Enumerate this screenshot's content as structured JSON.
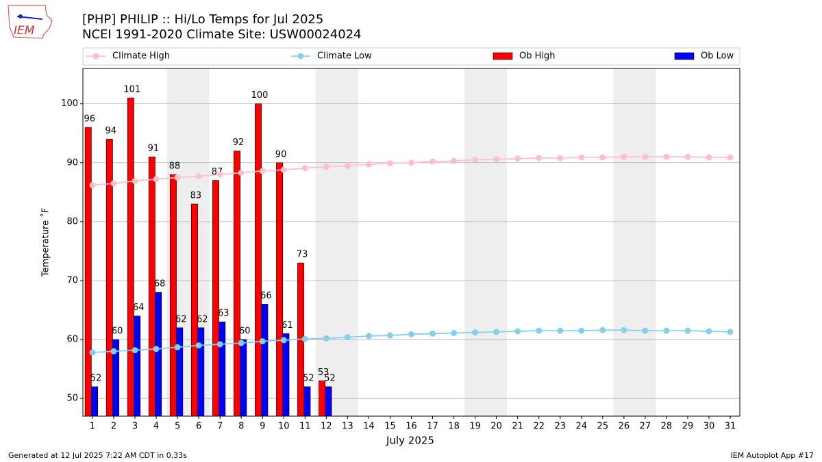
{
  "logo_text": "IEM",
  "chart_data": {
    "type": "bar_line",
    "title": "[PHP] PHILIP :: Hi/Lo Temps for Jul 2025",
    "subtitle": "NCEI 1991-2020 Climate Site: USW00024024",
    "xlabel": "July 2025",
    "ylabel": "Temperature ˚F",
    "x": [
      1,
      2,
      3,
      4,
      5,
      6,
      7,
      8,
      9,
      10,
      11,
      12,
      13,
      14,
      15,
      16,
      17,
      18,
      19,
      20,
      21,
      22,
      23,
      24,
      25,
      26,
      27,
      28,
      29,
      30,
      31
    ],
    "xticks": [
      1,
      2,
      3,
      4,
      5,
      6,
      7,
      8,
      9,
      10,
      11,
      12,
      13,
      14,
      15,
      16,
      17,
      18,
      19,
      20,
      21,
      22,
      23,
      24,
      25,
      26,
      27,
      28,
      29,
      30,
      31
    ],
    "xlim": [
      0.55,
      31.45
    ],
    "ylim": [
      47,
      106
    ],
    "yticks": [
      50,
      60,
      70,
      80,
      90,
      100
    ],
    "grid": true,
    "shaded_days": [
      5,
      6,
      12,
      13,
      19,
      20,
      26,
      27
    ],
    "shade_color": "#eeeeee",
    "series": [
      {
        "name": "Climate High",
        "kind": "line",
        "color": "#ffc0cb",
        "values": [
          86.2,
          86.5,
          86.9,
          87.2,
          87.5,
          87.7,
          88.0,
          88.3,
          88.6,
          88.8,
          89.1,
          89.3,
          89.5,
          89.7,
          89.9,
          90.0,
          90.2,
          90.3,
          90.5,
          90.6,
          90.7,
          90.8,
          90.8,
          90.9,
          90.9,
          91.0,
          91.0,
          91.0,
          91.0,
          90.9,
          90.9
        ]
      },
      {
        "name": "Climate Low",
        "kind": "line",
        "color": "#87ceeb",
        "values": [
          57.8,
          58.0,
          58.2,
          58.4,
          58.7,
          59.0,
          59.2,
          59.4,
          59.7,
          59.9,
          60.1,
          60.2,
          60.4,
          60.6,
          60.7,
          60.9,
          61.0,
          61.1,
          61.2,
          61.3,
          61.4,
          61.5,
          61.5,
          61.5,
          61.6,
          61.6,
          61.5,
          61.5,
          61.5,
          61.4,
          61.3
        ]
      },
      {
        "name": "Ob High",
        "kind": "bar",
        "color": "#ff0000",
        "values": [
          96,
          94,
          101,
          91,
          88,
          83,
          87,
          92,
          100,
          90,
          73,
          53,
          null,
          null,
          null,
          null,
          null,
          null,
          null,
          null,
          null,
          null,
          null,
          null,
          null,
          null,
          null,
          null,
          null,
          null,
          null
        ]
      },
      {
        "name": "Ob Low",
        "kind": "bar",
        "color": "#0000ff",
        "values": [
          52,
          60,
          64,
          68,
          62,
          62,
          63,
          60,
          66,
          61,
          52,
          52,
          null,
          null,
          null,
          null,
          null,
          null,
          null,
          null,
          null,
          null,
          null,
          null,
          null,
          null,
          null,
          null,
          null,
          null,
          null
        ]
      }
    ],
    "footer_left": "Generated at 12 Jul 2025 7:22 AM CDT in 0.33s",
    "footer_right": "IEM Autoplot App #17"
  }
}
